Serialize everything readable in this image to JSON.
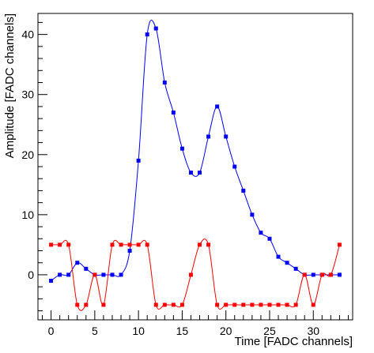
{
  "chart_data": {
    "type": "line",
    "title": "",
    "xlabel": "Time [FADC channels]",
    "ylabel": "Amplitude [FADC channels]",
    "xlim": [
      -1.5,
      34.5
    ],
    "ylim": [
      -7.5,
      43.5
    ],
    "xticks": [
      0,
      5,
      10,
      15,
      20,
      25,
      30
    ],
    "yticks": [
      0,
      10,
      20,
      30,
      40
    ],
    "grid": false,
    "legend": "none",
    "series": [
      {
        "color": "#0000ff",
        "marker": "square",
        "x": [
          0,
          1,
          2,
          3,
          4,
          5,
          6,
          7,
          8,
          9,
          10,
          11,
          12,
          13,
          14,
          15,
          16,
          17,
          18,
          19,
          20,
          21,
          22,
          23,
          24,
          25,
          26,
          27,
          28,
          29,
          30,
          31,
          32,
          33
        ],
        "y": [
          -1,
          0,
          0,
          2,
          1,
          0,
          0,
          0,
          0,
          4,
          19,
          40,
          41,
          32,
          27,
          21,
          17,
          17,
          23,
          28,
          23,
          18,
          14,
          10,
          7,
          6,
          3,
          2,
          1,
          0,
          0,
          0,
          0,
          0
        ]
      },
      {
        "color": "#ff0000",
        "marker": "square",
        "x": [
          0,
          1,
          2,
          3,
          4,
          5,
          6,
          7,
          8,
          9,
          10,
          11,
          12,
          13,
          14,
          15,
          16,
          17,
          18,
          19,
          20,
          21,
          22,
          23,
          24,
          25,
          26,
          27,
          28,
          29,
          30,
          31,
          32,
          33
        ],
        "y": [
          5,
          5,
          5,
          -5,
          -5,
          0,
          -5,
          5,
          5,
          5,
          5,
          5,
          -5,
          -5,
          -5,
          -5,
          0,
          5,
          5,
          -5,
          -5,
          -5,
          -5,
          -5,
          -5,
          -5,
          -5,
          -5,
          -5,
          0,
          -5,
          0,
          0,
          5
        ]
      }
    ]
  }
}
